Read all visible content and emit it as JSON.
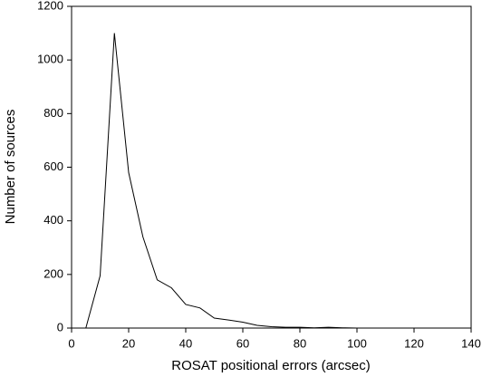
{
  "chart_data": {
    "type": "line",
    "x_label": "ROSAT positional errors (arcsec)",
    "y_label": "Number of sources",
    "x": [
      5,
      10,
      15,
      20,
      25,
      30,
      35,
      40,
      45,
      50,
      55,
      60,
      65,
      70,
      75,
      80,
      85,
      90,
      95,
      100,
      105,
      110,
      115,
      120,
      125,
      130,
      135,
      140
    ],
    "values": [
      0,
      195,
      1100,
      580,
      340,
      180,
      150,
      88,
      75,
      37,
      30,
      22,
      10,
      5,
      3,
      3,
      1,
      3,
      1,
      0,
      0,
      0,
      0,
      0,
      0,
      0,
      0,
      0
    ],
    "color": "#000000",
    "xlim": [
      0,
      140
    ],
    "xticks": [
      0,
      20,
      40,
      60,
      80,
      100,
      120,
      140
    ],
    "ylim": [
      0,
      1200
    ],
    "yticks": [
      0,
      200,
      400,
      600,
      800,
      1000,
      1200
    ]
  }
}
